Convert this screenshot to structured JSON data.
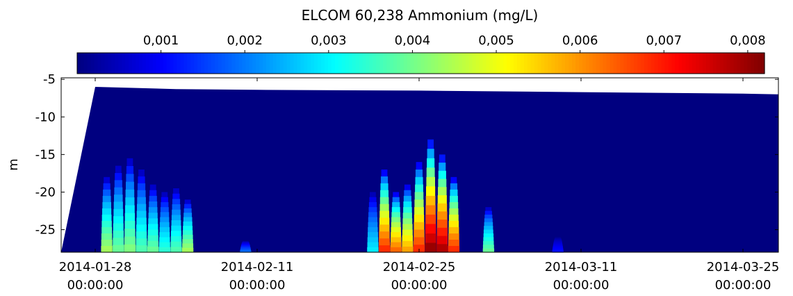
{
  "chart_data": {
    "type": "heatmap",
    "title": "ELCOM 60,238 Ammonium (mg/L)",
    "ylabel": "m",
    "xlabel": "",
    "colorbar": {
      "orientation": "horizontal",
      "position": "top",
      "colormap": "jet",
      "range": [
        0.0,
        0.0082
      ],
      "ticks": [
        0.001,
        0.002,
        0.003,
        0.004,
        0.005,
        0.006,
        0.007,
        0.008
      ],
      "tick_labels": [
        "0,001",
        "0,002",
        "0,003",
        "0,004",
        "0,005",
        "0,006",
        "0,007",
        "0,008"
      ]
    },
    "x_axis": {
      "type": "date",
      "range": [
        "2014-01-28",
        "2014-03-28"
      ],
      "ticks": [
        "2014-01-28",
        "2014-02-11",
        "2014-02-25",
        "2014-03-11",
        "2014-03-25"
      ],
      "tick_labels": [
        [
          "2014-01-28",
          "00:00:00"
        ],
        [
          "2014-02-11",
          "00:00:00"
        ],
        [
          "2014-02-25",
          "00:00:00"
        ],
        [
          "2014-03-11",
          "00:00:00"
        ],
        [
          "2014-03-25",
          "00:00:00"
        ]
      ]
    },
    "y_axis": {
      "range": [
        -28,
        -4.8
      ],
      "ticks": [
        -5,
        -10,
        -15,
        -20,
        -25
      ],
      "tick_labels": [
        "-5",
        "-10",
        "-15",
        "-20",
        "-25"
      ]
    },
    "background_value": 0.0,
    "surface": [
      {
        "date": "2014-01-28",
        "depth": -6.0
      },
      {
        "date": "2014-02-04",
        "depth": -6.3
      },
      {
        "date": "2014-02-11",
        "depth": -6.4
      },
      {
        "date": "2014-02-25",
        "depth": -6.5
      },
      {
        "date": "2014-03-11",
        "depth": -6.7
      },
      {
        "date": "2014-03-25",
        "depth": -6.9
      },
      {
        "date": "2014-03-28",
        "depth": -7.0
      }
    ],
    "plumes": [
      {
        "date": "2014-01-29",
        "top_depth": -18.0,
        "max_value": 0.0045
      },
      {
        "date": "2014-01-30",
        "top_depth": -16.5,
        "max_value": 0.004
      },
      {
        "date": "2014-01-31",
        "top_depth": -15.5,
        "max_value": 0.0042
      },
      {
        "date": "2014-02-01",
        "top_depth": -17.0,
        "max_value": 0.0038
      },
      {
        "date": "2014-02-02",
        "top_depth": -19.0,
        "max_value": 0.004
      },
      {
        "date": "2014-02-03",
        "top_depth": -20.0,
        "max_value": 0.0035
      },
      {
        "date": "2014-02-04",
        "top_depth": -19.5,
        "max_value": 0.0038
      },
      {
        "date": "2014-02-05",
        "top_depth": -21.0,
        "max_value": 0.0045
      },
      {
        "date": "2014-02-10",
        "top_depth": -26.5,
        "max_value": 0.002
      },
      {
        "date": "2014-02-21",
        "top_depth": -20.0,
        "max_value": 0.003
      },
      {
        "date": "2014-02-22",
        "top_depth": -17.0,
        "max_value": 0.007
      },
      {
        "date": "2014-02-23",
        "top_depth": -20.0,
        "max_value": 0.0065
      },
      {
        "date": "2014-02-24",
        "top_depth": -19.0,
        "max_value": 0.006
      },
      {
        "date": "2014-02-25",
        "top_depth": -16.0,
        "max_value": 0.007
      },
      {
        "date": "2014-02-26",
        "top_depth": -13.0,
        "max_value": 0.0082
      },
      {
        "date": "2014-02-27",
        "top_depth": -15.0,
        "max_value": 0.008
      },
      {
        "date": "2014-02-28",
        "top_depth": -18.0,
        "max_value": 0.007
      },
      {
        "date": "2014-03-03",
        "top_depth": -22.0,
        "max_value": 0.004
      },
      {
        "date": "2014-03-09",
        "top_depth": -26.0,
        "max_value": 0.0012
      }
    ],
    "grid": false,
    "legend": "none"
  }
}
